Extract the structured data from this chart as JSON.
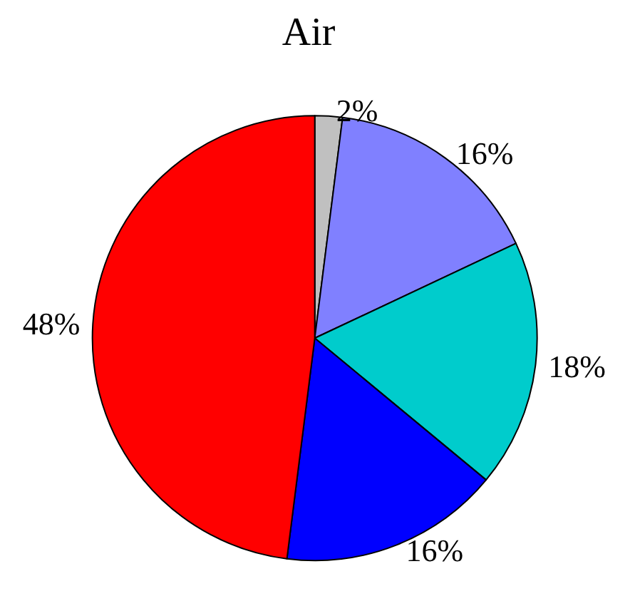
{
  "chart_data": {
    "type": "pie",
    "title": "Air",
    "categories": [
      null,
      null,
      null,
      null,
      null
    ],
    "values": [
      2,
      16,
      18,
      16,
      48
    ],
    "value_labels": [
      "2%",
      "16%",
      "18%",
      "16%",
      "48%"
    ],
    "colors": [
      "#c0c0c0",
      "#8080ff",
      "#00cccc",
      "#0000ff",
      "#ff0000"
    ]
  }
}
